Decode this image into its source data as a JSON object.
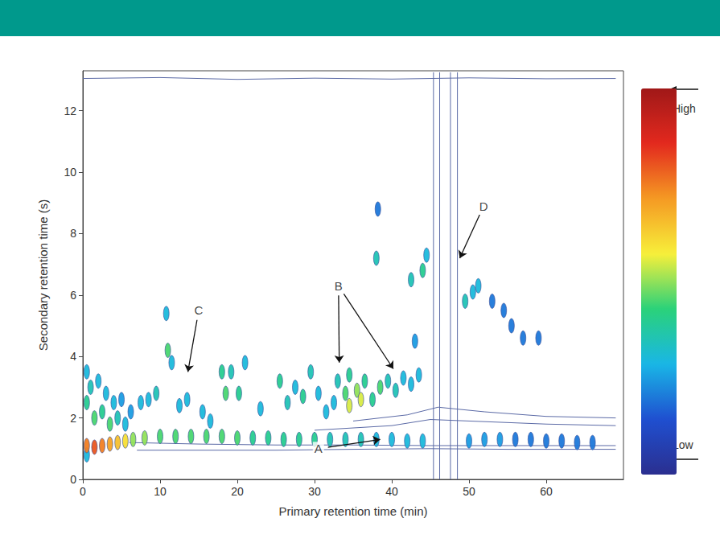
{
  "chart_data": {
    "type": "contour",
    "x_label": "Primary retention time (min)",
    "y_label": "Secondary retention time (s)",
    "xlim": [
      0,
      70
    ],
    "xticks": [
      0,
      10,
      20,
      30,
      40,
      50,
      60
    ],
    "ylim": [
      0,
      13.3
    ],
    "yticks": [
      0,
      2,
      4,
      6,
      8,
      10,
      12
    ],
    "colorbar": {
      "range": [
        0,
        1
      ],
      "ticks": [
        {
          "value": 1,
          "label": "High"
        },
        {
          "value": 0,
          "label": "Low"
        }
      ],
      "colors": [
        "#2b2f8f",
        "#1f4fd0",
        "#19b6e6",
        "#2ad27a",
        "#f7ef3a",
        "#f59a23",
        "#e3291e",
        "#a01818"
      ]
    },
    "peaks": [
      [
        0.5,
        3.5,
        0.3
      ],
      [
        0.5,
        2.5,
        0.4
      ],
      [
        1,
        3,
        0.35
      ],
      [
        1.5,
        2,
        0.45
      ],
      [
        2,
        3.2,
        0.3
      ],
      [
        2.5,
        2.2,
        0.4
      ],
      [
        3,
        2.8,
        0.3
      ],
      [
        3.5,
        1.8,
        0.45
      ],
      [
        4,
        2.5,
        0.3
      ],
      [
        4.5,
        2,
        0.35
      ],
      [
        5,
        2.6,
        0.25
      ],
      [
        5.5,
        1.8,
        0.3
      ],
      [
        6.2,
        2.2,
        0.25
      ],
      [
        0.5,
        0.8,
        0.3
      ],
      [
        0.5,
        1.1,
        0.75
      ],
      [
        1.5,
        1.05,
        0.8
      ],
      [
        2.5,
        1.1,
        0.75
      ],
      [
        3.5,
        1.15,
        0.7
      ],
      [
        4.5,
        1.2,
        0.65
      ],
      [
        5.5,
        1.25,
        0.6
      ],
      [
        6.5,
        1.3,
        0.5
      ],
      [
        8,
        1.35,
        0.5
      ],
      [
        10,
        1.4,
        0.45
      ],
      [
        12,
        1.4,
        0.45
      ],
      [
        14,
        1.4,
        0.45
      ],
      [
        16,
        1.4,
        0.45
      ],
      [
        18,
        1.4,
        0.45
      ],
      [
        20,
        1.35,
        0.45
      ],
      [
        22,
        1.35,
        0.4
      ],
      [
        24,
        1.35,
        0.4
      ],
      [
        26,
        1.3,
        0.4
      ],
      [
        28,
        1.3,
        0.4
      ],
      [
        30,
        1.3,
        0.4
      ],
      [
        32,
        1.3,
        0.35
      ],
      [
        34,
        1.3,
        0.35
      ],
      [
        36,
        1.3,
        0.35
      ],
      [
        38,
        1.3,
        0.3
      ],
      [
        40,
        1.3,
        0.3
      ],
      [
        42,
        1.25,
        0.3
      ],
      [
        44,
        1.25,
        0.3
      ],
      [
        50,
        1.25,
        0.25
      ],
      [
        52,
        1.3,
        0.25
      ],
      [
        54,
        1.3,
        0.25
      ],
      [
        56,
        1.3,
        0.2
      ],
      [
        58,
        1.3,
        0.2
      ],
      [
        60,
        1.25,
        0.2
      ],
      [
        62,
        1.25,
        0.2
      ],
      [
        64,
        1.2,
        0.2
      ],
      [
        66,
        1.2,
        0.2
      ],
      [
        7.5,
        2.5,
        0.3
      ],
      [
        8.5,
        2.6,
        0.3
      ],
      [
        9.5,
        2.8,
        0.35
      ],
      [
        10.8,
        5.4,
        0.3
      ],
      [
        11,
        4.2,
        0.45
      ],
      [
        11.5,
        3.8,
        0.3
      ],
      [
        12.5,
        2.4,
        0.3
      ],
      [
        13.5,
        2.6,
        0.3
      ],
      [
        15.5,
        2.2,
        0.3
      ],
      [
        16.5,
        1.9,
        0.3
      ],
      [
        18,
        3.5,
        0.4
      ],
      [
        18.5,
        2.8,
        0.45
      ],
      [
        19.2,
        3.5,
        0.35
      ],
      [
        20.2,
        2.8,
        0.4
      ],
      [
        21,
        3.8,
        0.3
      ],
      [
        23,
        2.3,
        0.3
      ],
      [
        25.5,
        3.2,
        0.4
      ],
      [
        26.5,
        2.5,
        0.35
      ],
      [
        27.5,
        3,
        0.3
      ],
      [
        28.5,
        2.7,
        0.4
      ],
      [
        29.5,
        3.5,
        0.35
      ],
      [
        30.5,
        2.8,
        0.3
      ],
      [
        31.5,
        2.2,
        0.3
      ],
      [
        32.5,
        2.5,
        0.3
      ],
      [
        33,
        3.2,
        0.35
      ],
      [
        34,
        2.8,
        0.45
      ],
      [
        34.5,
        3.4,
        0.4
      ],
      [
        35.5,
        2.9,
        0.5
      ],
      [
        36.5,
        3.2,
        0.4
      ],
      [
        37.5,
        2.6,
        0.4
      ],
      [
        38.5,
        3,
        0.45
      ],
      [
        39.5,
        3.2,
        0.35
      ],
      [
        40.5,
        2.9,
        0.35
      ],
      [
        41.5,
        3.3,
        0.3
      ],
      [
        42.5,
        3.1,
        0.3
      ],
      [
        43.5,
        3.4,
        0.3
      ],
      [
        38,
        7.2,
        0.35
      ],
      [
        38.2,
        8.8,
        0.2
      ],
      [
        42.5,
        6.5,
        0.35
      ],
      [
        43,
        4.5,
        0.25
      ],
      [
        44,
        6.8,
        0.4
      ],
      [
        44.5,
        7.3,
        0.3
      ],
      [
        49.5,
        5.8,
        0.35
      ],
      [
        50.5,
        6.1,
        0.3
      ],
      [
        51.2,
        6.3,
        0.3
      ],
      [
        53,
        5.8,
        0.2
      ],
      [
        54.5,
        5.5,
        0.2
      ],
      [
        55.5,
        5,
        0.2
      ],
      [
        57,
        4.6,
        0.2
      ],
      [
        59,
        4.6,
        0.2
      ],
      [
        34.5,
        2.4,
        0.55
      ],
      [
        36,
        2.6,
        0.55
      ]
    ],
    "contour_color": "#5b6aa6",
    "contour_lines": [
      {
        "x": [
          0,
          10,
          20,
          30,
          40,
          50,
          60,
          69
        ],
        "y": [
          13.05,
          13.08,
          13.02,
          13.06,
          13.03,
          13.07,
          13.04,
          13.05
        ]
      },
      {
        "x": [
          7,
          15,
          25,
          35,
          45,
          55,
          69
        ],
        "y": [
          0.95,
          0.95,
          0.95,
          0.98,
          1.0,
          0.98,
          0.98
        ]
      },
      {
        "x": [
          6,
          15,
          25,
          35,
          45,
          55,
          69
        ],
        "y": [
          1.2,
          1.15,
          1.12,
          1.12,
          1.1,
          1.1,
          1.1
        ]
      },
      {
        "x": [
          30,
          40,
          45,
          50,
          60,
          69
        ],
        "y": [
          1.6,
          1.75,
          1.95,
          1.9,
          1.8,
          1.75
        ]
      },
      {
        "x": [
          35,
          42,
          46,
          52,
          60,
          69
        ],
        "y": [
          1.9,
          2.1,
          2.35,
          2.2,
          2.05,
          2.0
        ]
      },
      {
        "x": [
          45.4,
          45.4
        ],
        "y": [
          0,
          13.25
        ]
      },
      {
        "x": [
          46.2,
          46.2
        ],
        "y": [
          0,
          13.25
        ]
      },
      {
        "x": [
          47.6,
          47.6
        ],
        "y": [
          0,
          13.25
        ]
      },
      {
        "x": [
          48.5,
          48.5
        ],
        "y": [
          0,
          13.25
        ]
      }
    ],
    "annotations": [
      {
        "text": "A",
        "text_at": [
          30.5,
          1.0
        ],
        "points_to": [
          [
            38.5,
            1.3
          ]
        ]
      },
      {
        "text": "B",
        "text_at": [
          33.1,
          6.3
        ],
        "points_to": [
          [
            33.2,
            3.8
          ],
          [
            40.2,
            3.6
          ]
        ]
      },
      {
        "text": "C",
        "text_at": [
          15,
          5.5
        ],
        "points_to": [
          [
            13.6,
            3.5
          ]
        ]
      },
      {
        "text": "D",
        "text_at": [
          51.9,
          8.9
        ],
        "points_to": [
          [
            48.8,
            7.2
          ]
        ]
      }
    ]
  }
}
